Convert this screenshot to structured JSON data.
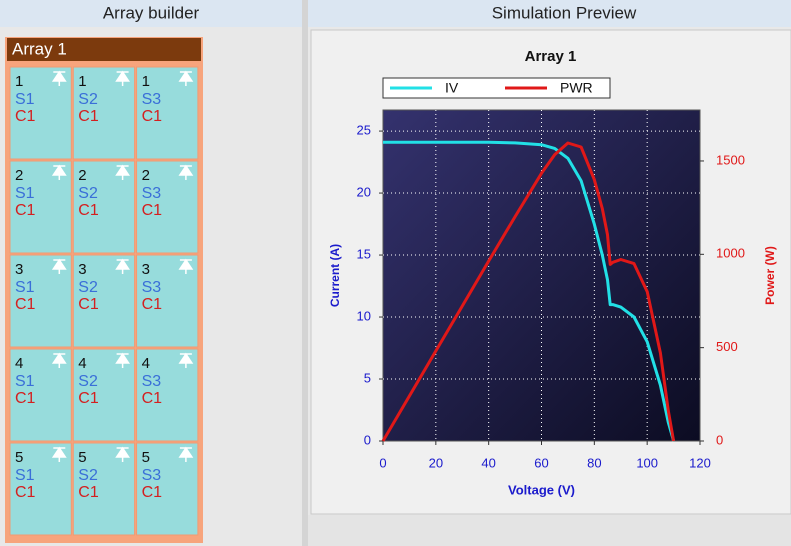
{
  "panels": {
    "left_title": "Array builder",
    "right_title": "Simulation Preview"
  },
  "array": {
    "name": "Array 1",
    "cells": [
      [
        [
          "1",
          "S1",
          "C1"
        ],
        [
          "1",
          "S2",
          "C1"
        ],
        [
          "1",
          "S3",
          "C1"
        ]
      ],
      [
        [
          "2",
          "S1",
          "C1"
        ],
        [
          "2",
          "S2",
          "C1"
        ],
        [
          "2",
          "S3",
          "C1"
        ]
      ],
      [
        [
          "3",
          "S1",
          "C1"
        ],
        [
          "3",
          "S2",
          "C1"
        ],
        [
          "3",
          "S3",
          "C1"
        ]
      ],
      [
        [
          "4",
          "S1",
          "C1"
        ],
        [
          "4",
          "S2",
          "C1"
        ],
        [
          "4",
          "S3",
          "C1"
        ]
      ],
      [
        [
          "5",
          "S1",
          "C1"
        ],
        [
          "5",
          "S2",
          "C1"
        ],
        [
          "5",
          "S3",
          "C1"
        ]
      ]
    ]
  },
  "chart_data": {
    "type": "line",
    "title": "Array 1",
    "x_label": "Voltage (V)",
    "y_label": "Current (A)",
    "y2_label": "Power (W)",
    "x": [
      0,
      10,
      20,
      30,
      40,
      50,
      60,
      65,
      70,
      75,
      80,
      83,
      85,
      86,
      87,
      90,
      95,
      100,
      105,
      108,
      110
    ],
    "series": [
      {
        "name": "IV",
        "color": "#22e0e6",
        "values": [
          24.1,
          24.1,
          24.1,
          24.1,
          24.1,
          24.05,
          23.9,
          23.6,
          22.8,
          21,
          17.5,
          15,
          13,
          11,
          11,
          10.8,
          10,
          8,
          4.5,
          1.5,
          0
        ]
      },
      {
        "name": "PWR",
        "color": "#e01818",
        "axis": "y2",
        "values": [
          0,
          241,
          482,
          723,
          964,
          1202,
          1434,
          1534,
          1596,
          1575,
          1400,
          1245,
          1105,
          946,
          957,
          972,
          950,
          800,
          472,
          162,
          0
        ]
      }
    ],
    "xlim": [
      0,
      120
    ],
    "xticks": [
      0,
      20,
      40,
      60,
      80,
      100,
      120
    ],
    "ylim": [
      0,
      26.7
    ],
    "yticks": [
      0,
      5,
      10,
      15,
      20,
      25
    ],
    "y2lim": [
      0,
      1773
    ],
    "y2ticks": [
      0,
      500,
      1000,
      1500
    ],
    "grid": true,
    "legend": "top"
  }
}
